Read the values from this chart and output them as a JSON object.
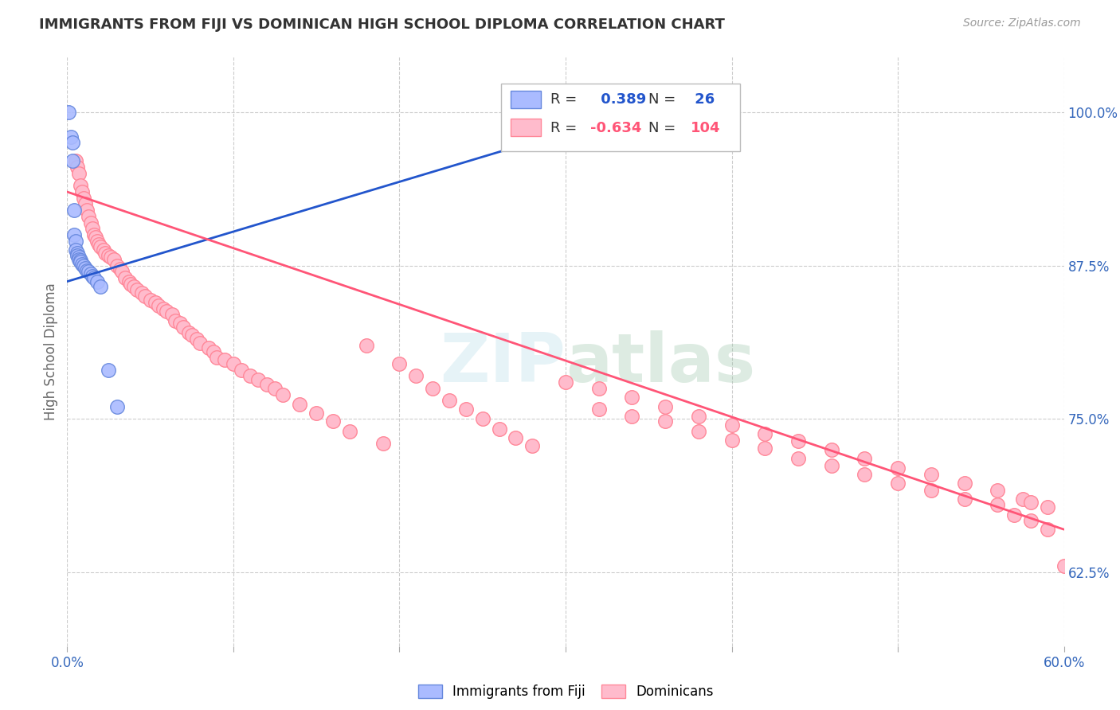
{
  "title": "IMMIGRANTS FROM FIJI VS DOMINICAN HIGH SCHOOL DIPLOMA CORRELATION CHART",
  "source": "Source: ZipAtlas.com",
  "ylabel": "High School Diploma",
  "ytick_labels": [
    "100.0%",
    "87.5%",
    "75.0%",
    "62.5%"
  ],
  "ytick_values": [
    1.0,
    0.875,
    0.75,
    0.625
  ],
  "xlim": [
    0.0,
    0.6
  ],
  "ylim": [
    0.565,
    1.045
  ],
  "fiji_R": 0.389,
  "fiji_N": 26,
  "dominican_R": -0.634,
  "dominican_N": 104,
  "fiji_face_color": "#aabbff",
  "fiji_edge_color": "#6688dd",
  "dominican_face_color": "#ffbbcc",
  "dominican_edge_color": "#ff8899",
  "fiji_line_color": "#2255cc",
  "dominican_line_color": "#ff5577",
  "watermark": "ZIPatlas",
  "legend_R_color": "#2255cc",
  "legend_R2_color": "#ff5577",
  "fiji_x": [
    0.001,
    0.002,
    0.003,
    0.003,
    0.004,
    0.004,
    0.005,
    0.005,
    0.006,
    0.006,
    0.007,
    0.007,
    0.008,
    0.008,
    0.009,
    0.01,
    0.011,
    0.012,
    0.013,
    0.014,
    0.015,
    0.016,
    0.018,
    0.02,
    0.025,
    0.03
  ],
  "fiji_y": [
    1.0,
    0.98,
    0.975,
    0.96,
    0.92,
    0.9,
    0.895,
    0.888,
    0.885,
    0.883,
    0.882,
    0.88,
    0.879,
    0.878,
    0.876,
    0.875,
    0.873,
    0.871,
    0.87,
    0.868,
    0.866,
    0.865,
    0.862,
    0.858,
    0.79,
    0.76
  ],
  "dom_x": [
    0.005,
    0.006,
    0.007,
    0.008,
    0.009,
    0.01,
    0.011,
    0.012,
    0.013,
    0.014,
    0.015,
    0.016,
    0.017,
    0.018,
    0.019,
    0.02,
    0.022,
    0.023,
    0.025,
    0.026,
    0.028,
    0.03,
    0.032,
    0.033,
    0.035,
    0.037,
    0.038,
    0.04,
    0.042,
    0.045,
    0.047,
    0.05,
    0.053,
    0.055,
    0.058,
    0.06,
    0.063,
    0.065,
    0.068,
    0.07,
    0.073,
    0.075,
    0.078,
    0.08,
    0.085,
    0.088,
    0.09,
    0.095,
    0.1,
    0.105,
    0.11,
    0.115,
    0.12,
    0.125,
    0.13,
    0.14,
    0.15,
    0.16,
    0.17,
    0.18,
    0.19,
    0.2,
    0.21,
    0.22,
    0.23,
    0.24,
    0.25,
    0.26,
    0.27,
    0.28,
    0.3,
    0.32,
    0.34,
    0.36,
    0.38,
    0.4,
    0.42,
    0.44,
    0.46,
    0.48,
    0.5,
    0.52,
    0.54,
    0.56,
    0.575,
    0.58,
    0.59,
    0.32,
    0.34,
    0.36,
    0.38,
    0.4,
    0.42,
    0.44,
    0.46,
    0.48,
    0.5,
    0.52,
    0.54,
    0.56,
    0.57,
    0.58,
    0.59,
    0.6
  ],
  "dom_y": [
    0.96,
    0.955,
    0.95,
    0.94,
    0.935,
    0.93,
    0.925,
    0.92,
    0.915,
    0.91,
    0.905,
    0.9,
    0.898,
    0.895,
    0.892,
    0.89,
    0.888,
    0.885,
    0.883,
    0.882,
    0.88,
    0.875,
    0.872,
    0.87,
    0.865,
    0.862,
    0.86,
    0.858,
    0.855,
    0.853,
    0.85,
    0.847,
    0.845,
    0.842,
    0.84,
    0.838,
    0.835,
    0.83,
    0.828,
    0.825,
    0.82,
    0.818,
    0.815,
    0.812,
    0.808,
    0.805,
    0.8,
    0.798,
    0.795,
    0.79,
    0.785,
    0.782,
    0.778,
    0.775,
    0.77,
    0.762,
    0.755,
    0.748,
    0.74,
    0.81,
    0.73,
    0.795,
    0.785,
    0.775,
    0.765,
    0.758,
    0.75,
    0.742,
    0.735,
    0.728,
    0.78,
    0.775,
    0.768,
    0.76,
    0.752,
    0.745,
    0.738,
    0.732,
    0.725,
    0.718,
    0.71,
    0.705,
    0.698,
    0.692,
    0.685,
    0.682,
    0.678,
    0.758,
    0.752,
    0.748,
    0.74,
    0.733,
    0.726,
    0.718,
    0.712,
    0.705,
    0.698,
    0.692,
    0.685,
    0.68,
    0.672,
    0.667,
    0.66,
    0.63
  ],
  "fiji_trend_x": [
    0.0,
    0.335
  ],
  "fiji_trend_y": [
    0.862,
    0.998
  ],
  "dom_trend_x": [
    0.0,
    0.6
  ],
  "dom_trend_y": [
    0.935,
    0.66
  ]
}
